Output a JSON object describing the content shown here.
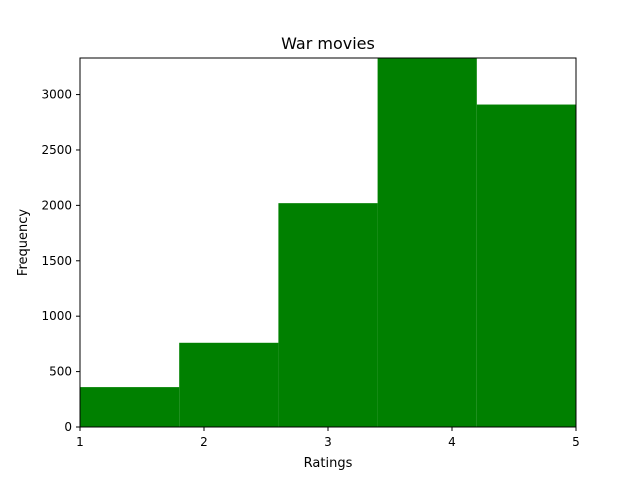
{
  "chart_data": {
    "type": "bar",
    "title": "War movies",
    "xlabel": "Ratings",
    "ylabel": "Frequency",
    "bin_edges": [
      1.0,
      1.8,
      2.6,
      3.4,
      4.2,
      5.0
    ],
    "values": [
      360,
      760,
      2020,
      3330,
      2910
    ],
    "xlim": [
      1,
      5
    ],
    "ylim": [
      0,
      3330
    ],
    "x_ticks": [
      1,
      2,
      3,
      4,
      5
    ],
    "y_ticks": [
      0,
      500,
      1000,
      1500,
      2000,
      2500,
      3000
    ],
    "bar_color": "#008000",
    "grid": false,
    "legend": "none"
  }
}
